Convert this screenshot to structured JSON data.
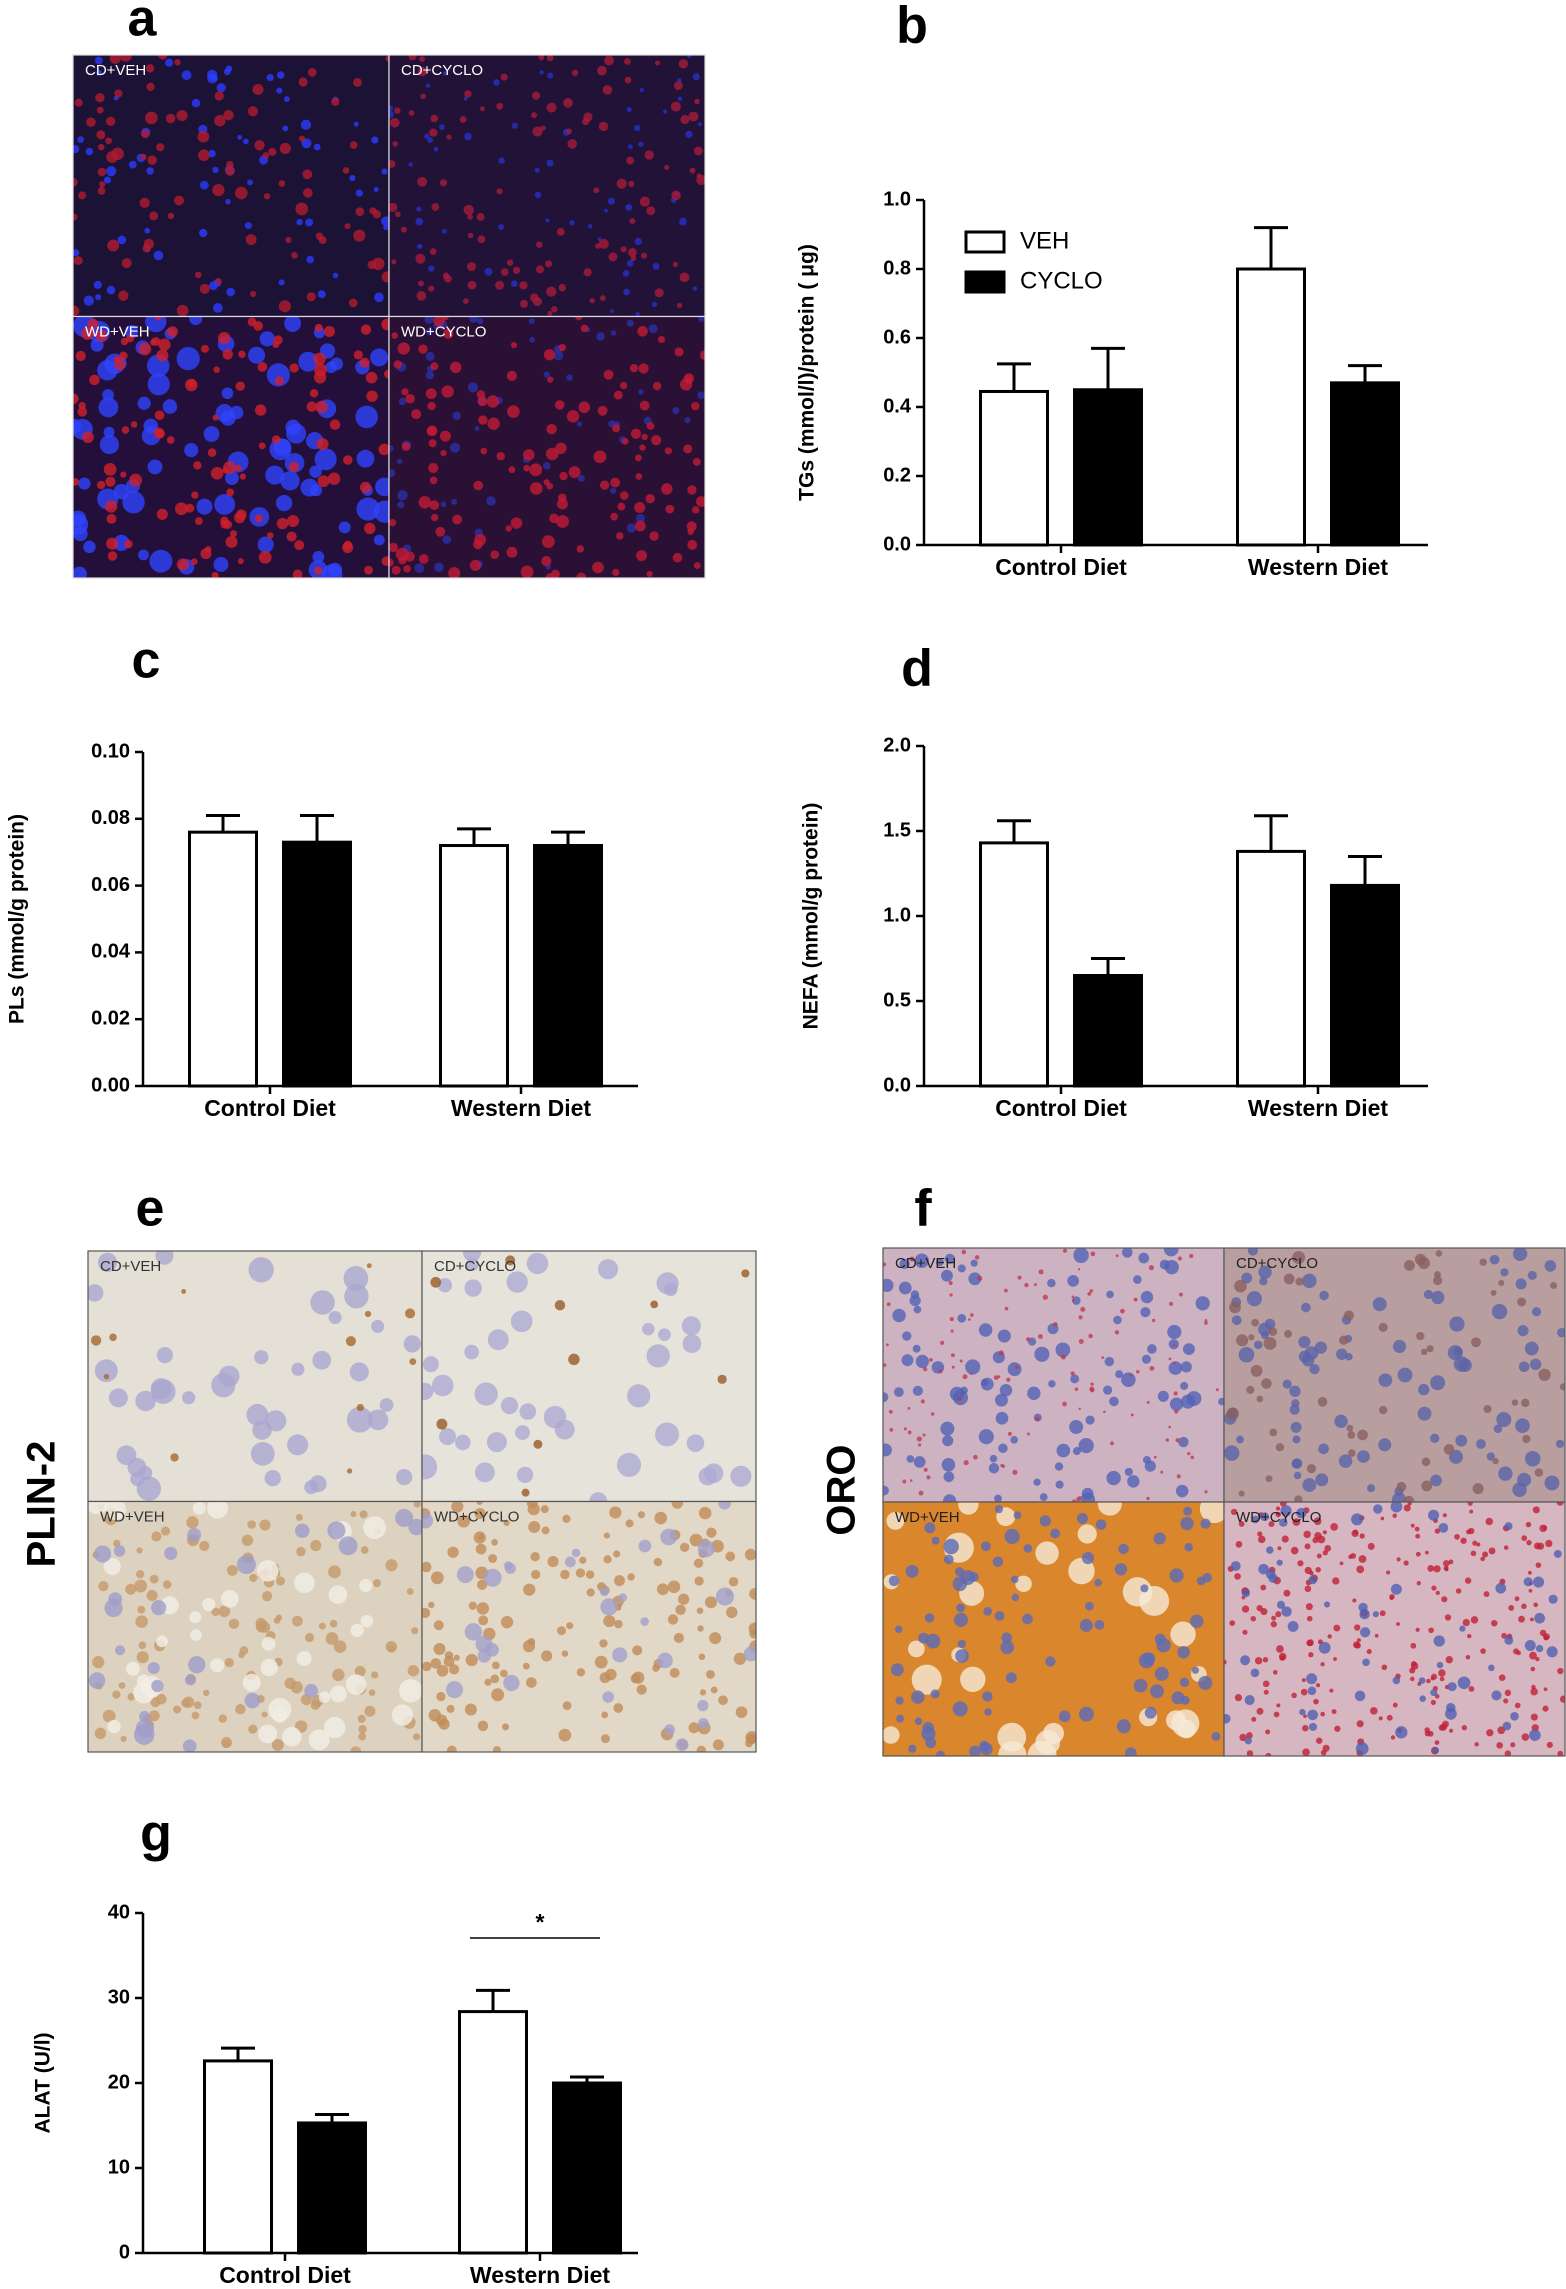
{
  "images": [
    {
      "label": "a",
      "quadrants": [
        "CD+VEH",
        "CD+CYCLO",
        "WD+VEH",
        "WD+CYCLO"
      ]
    },
    {
      "label": "e",
      "side_label": "PLIN-2",
      "quadrants": [
        "CD+VEH",
        "CD+CYCLO",
        "WD+VEH",
        "WD+CYCLO"
      ]
    },
    {
      "label": "f",
      "side_label": "ORO",
      "quadrants": [
        "CD+VEH",
        "CD+CYCLO",
        "WD+VEH",
        "WD+CYCLO"
      ]
    }
  ],
  "chart_data": [
    {
      "type": "bar",
      "label": "b",
      "y_label": "TGs (mmol/l)/protein ( μg)",
      "categories": [
        "Control Diet",
        "Western Diet"
      ],
      "series": [
        {
          "name": "VEH",
          "color": "#ffffff",
          "values": [
            0.445,
            0.8
          ],
          "errors": [
            0.08,
            0.12
          ]
        },
        {
          "name": "CYCLO",
          "color": "#000000",
          "values": [
            0.45,
            0.47
          ],
          "errors": [
            0.12,
            0.05
          ]
        }
      ],
      "ylim": [
        0,
        1.0
      ],
      "yticks": [
        {
          "value": 0,
          "label": "0.0"
        },
        0.2,
        0.4,
        0.6,
        0.8,
        {
          "value": 1.0,
          "label": "1.0"
        }
      ],
      "legend": "upper left"
    },
    {
      "type": "bar",
      "label": "c",
      "y_label": "PLs (mmol/g protein)",
      "categories": [
        "Control Diet",
        "Western Diet"
      ],
      "series": [
        {
          "color": "#ffffff",
          "values": [
            0.076,
            0.072
          ],
          "errors": [
            0.005,
            0.005
          ]
        },
        {
          "color": "#000000",
          "values": [
            0.073,
            0.072
          ],
          "errors": [
            0.008,
            0.004
          ]
        }
      ],
      "ylim": [
        0,
        0.1
      ],
      "yticks": [
        {
          "value": 0,
          "label": "0.00"
        },
        {
          "value": 0.02,
          "label": "0.02"
        },
        {
          "value": 0.04,
          "label": "0.04"
        },
        {
          "value": 0.06,
          "label": "0.06"
        },
        {
          "value": 0.08,
          "label": "0.08"
        },
        {
          "value": 0.1,
          "label": "0.10"
        }
      ]
    },
    {
      "type": "bar",
      "label": "d",
      "y_label": "NEFA (mmol/g protein)",
      "categories": [
        "Control Diet",
        "Western Diet"
      ],
      "series": [
        {
          "color": "#ffffff",
          "values": [
            1.43,
            1.38
          ],
          "errors": [
            0.13,
            0.21
          ]
        },
        {
          "color": "#000000",
          "values": [
            0.65,
            1.18
          ],
          "errors": [
            0.1,
            0.17
          ]
        }
      ],
      "ylim": [
        0,
        2.0
      ],
      "yticks": [
        {
          "value": 0,
          "label": "0.0"
        },
        0.5,
        {
          "value": 1.0,
          "label": "1.0"
        },
        1.5,
        {
          "value": 2.0,
          "label": "2.0"
        }
      ]
    },
    {
      "type": "bar",
      "label": "g",
      "y_label": "ALAT (U/l)",
      "categories": [
        "Control Diet",
        "Western Diet"
      ],
      "series": [
        {
          "color": "#ffffff",
          "values": [
            22.6,
            28.4
          ],
          "errors": [
            1.5,
            2.5
          ]
        },
        {
          "color": "#000000",
          "values": [
            15.3,
            20.0
          ],
          "errors": [
            1.0,
            0.7
          ]
        }
      ],
      "ylim": [
        0,
        40
      ],
      "yticks": [
        0,
        10,
        20,
        30,
        40
      ],
      "annotation": "*"
    }
  ]
}
